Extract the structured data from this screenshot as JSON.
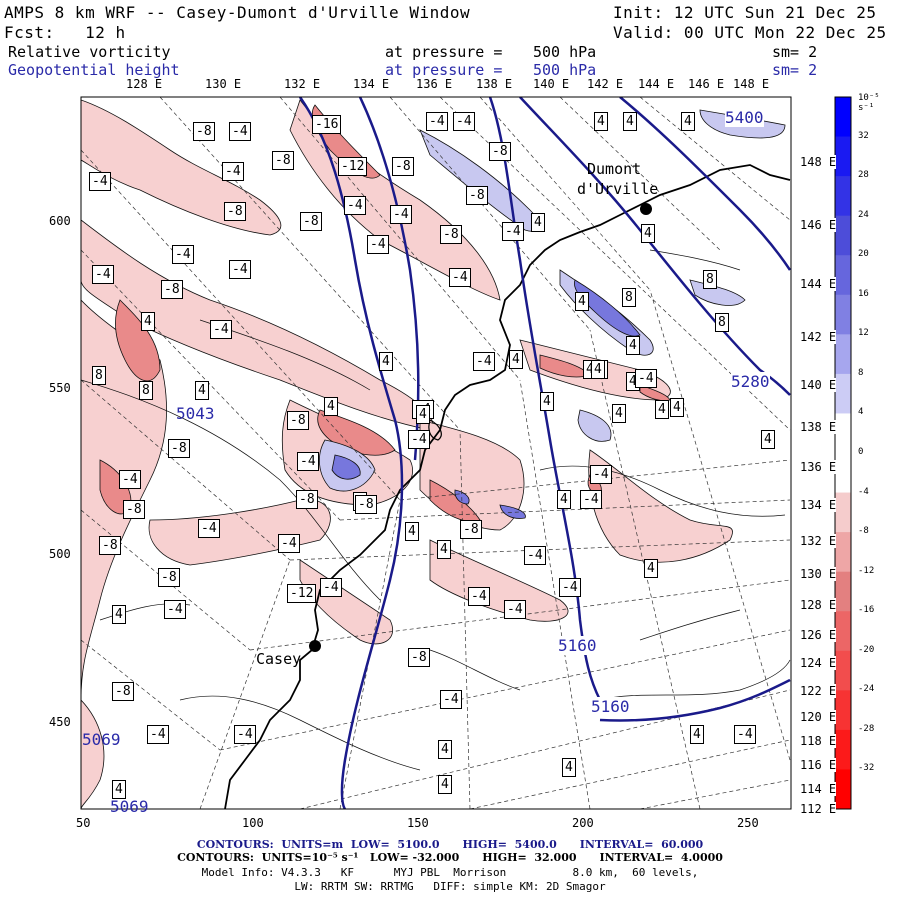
{
  "header": {
    "title_left": "AMPS 8 km WRF -- Casey-Dumont d'Urville Window",
    "init": "Init: 12 UTC Sun 21 Dec 25",
    "fcst": "Fcst:   12 h",
    "valid": "Valid: 00 UTC Mon 22 Dec 25"
  },
  "fields": [
    {
      "name": "Relative vorticity",
      "level_label": "at pressure =",
      "level": "500 hPa",
      "sm": "sm= 2"
    },
    {
      "name": "Geopotential height",
      "level_label": "at pressure =",
      "level": "500 hPa",
      "sm": "sm= 2"
    }
  ],
  "lon_labels": [
    "128 E",
    "130 E",
    "132 E",
    "134 E",
    "136 E",
    "138 E",
    "140 E",
    "142 E",
    "144 E",
    "146 E",
    "148 E"
  ],
  "lat_labels_right": [
    "148 E",
    "146 E",
    "144 E",
    "142 E",
    "140 E",
    "138 E",
    "136 E",
    "134 E",
    "132 E",
    "130 E",
    "128 E",
    "126 E",
    "124 E",
    "122 E",
    "120 E",
    "118 E",
    "116 E",
    "114 E",
    "112 E"
  ],
  "x_axis": [
    "50",
    "100",
    "150",
    "200",
    "250"
  ],
  "y_axis": [
    "600",
    "550",
    "500",
    "450"
  ],
  "colorbar": {
    "unit": "10⁻⁵ s⁻¹",
    "labels": [
      "32",
      "28",
      "24",
      "20",
      "16",
      "12",
      "8",
      "4",
      "0",
      "-4",
      "-8",
      "-12",
      "-16",
      "-20",
      "-24",
      "-28",
      "-32"
    ],
    "colors": [
      "#0000ff",
      "#1a1af2",
      "#3333e6",
      "#4d4dd9",
      "#6666dd",
      "#8080e3",
      "#a6a6ee",
      "#ccccf5",
      "#ffffff",
      "#ffffff",
      "#f5cccc",
      "#eea6a6",
      "#e38080",
      "#ec6666",
      "#f24d4d",
      "#f73333",
      "#fc1a1a",
      "#ff0000"
    ]
  },
  "places": [
    {
      "name": "Dumont",
      "name2": "d'Urville"
    },
    {
      "name": "Casey"
    }
  ],
  "height_labels": [
    "5400",
    "5280",
    "5160",
    "5160",
    "5043",
    "5069",
    "5069"
  ],
  "vort_boxes": [
    "-16",
    "-12",
    "-8",
    "-4",
    "-8",
    "-4",
    "-4",
    "-8",
    "-4",
    "-8",
    "-8",
    "-4",
    "-4",
    "-4",
    "-8",
    "-8",
    "-4",
    "-4",
    "-4",
    "-4",
    "-4",
    "-8",
    "-8",
    "-4",
    "4",
    "4",
    "4",
    "4",
    "4",
    "8",
    "4",
    "8",
    "4",
    "8",
    "4",
    "4",
    "-4",
    "4",
    "8",
    "8",
    "4",
    "4",
    "-4",
    "4",
    "-4",
    "4",
    "4",
    "4",
    "4",
    "-8",
    "-4",
    "-8",
    "-8",
    "-4",
    "-8",
    "-4",
    "-8",
    "-4",
    "-8",
    "-4",
    "-4",
    "-8",
    "-4",
    "-12",
    "-8",
    "-4",
    "-4",
    "-4",
    "4",
    "-8",
    "-4",
    "-4",
    "4",
    "4",
    "4",
    "4",
    "-4",
    "4",
    "4",
    "4",
    "-4",
    "4",
    "-4",
    "4",
    "4",
    "4",
    "-4",
    "4",
    "4",
    "-4",
    "4",
    "-8",
    "4",
    "-4"
  ],
  "footer": {
    "line1": "CONTOURS:  UNITS=m  LOW=  5100.0      HIGH=  5400.0      INTERVAL=  60.000",
    "line2": "CONTOURS:  UNITS=10⁻⁵ s⁻¹   LOW= -32.000      HIGH=  32.000      INTERVAL=  4.0000",
    "line3": "Model Info: V4.3.3   KF      MYJ PBL  Morrison          8.0 km,  60 levels,",
    "line4": "LW: RRTM SW: RRTMG   DIFF: simple KM: 2D Smagor"
  }
}
